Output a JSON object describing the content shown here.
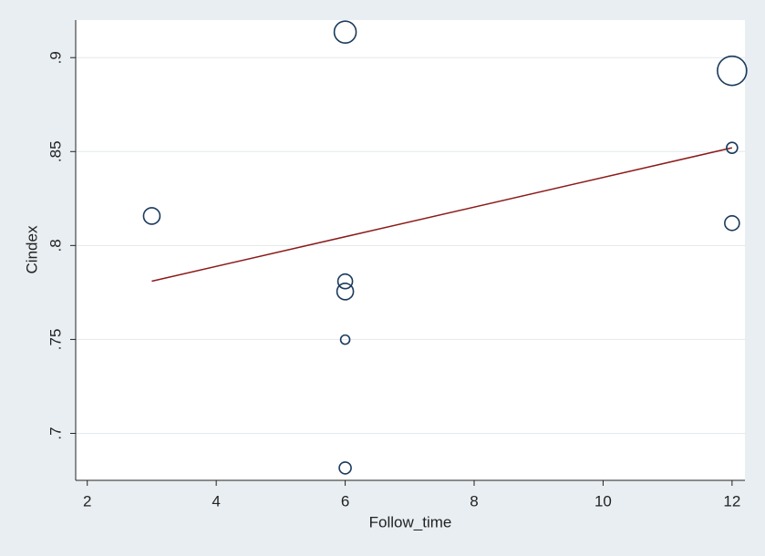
{
  "chart_data": {
    "type": "scatter",
    "x_label": "Follow_time",
    "y_label": "Cindex",
    "xlim": [
      1.82,
      12.2
    ],
    "ylim": [
      0.675,
      0.92
    ],
    "xticks": [
      2,
      4,
      6,
      8,
      10,
      12
    ],
    "yticks": [
      {
        "value": 0.7,
        "label": ".7"
      },
      {
        "value": 0.75,
        "label": ".75"
      },
      {
        "value": 0.8,
        "label": ".8"
      },
      {
        "value": 0.85,
        "label": ".85"
      },
      {
        "value": 0.9,
        "label": ".9"
      }
    ],
    "grid": true,
    "points": {
      "color": "#1a3a5c",
      "x": [
        6,
        12,
        12,
        3,
        12,
        6,
        6,
        6,
        6
      ],
      "values": [
        0.9136,
        0.893,
        0.852,
        0.8157,
        0.8119,
        0.7809,
        0.7755,
        0.7499,
        0.6816
      ],
      "sizes": [
        12,
        16,
        6,
        9,
        8,
        8,
        9,
        5,
        6.5
      ]
    },
    "fit_line": {
      "color": "#8b1a1a",
      "x": [
        3,
        12
      ],
      "values": [
        0.781,
        0.852
      ]
    }
  }
}
